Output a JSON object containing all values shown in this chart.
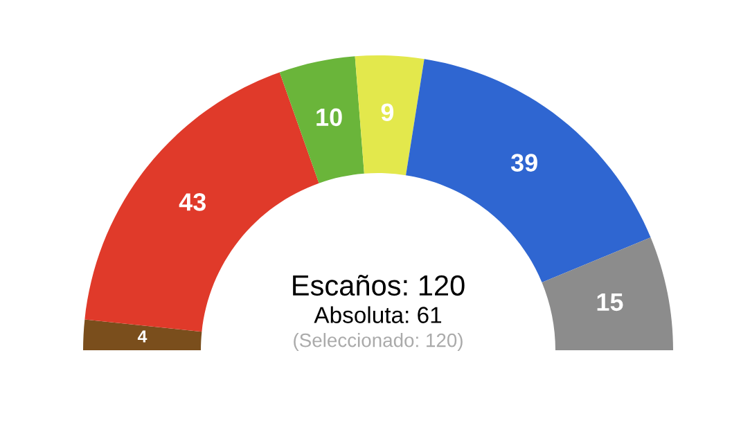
{
  "chart_data": {
    "type": "donut",
    "categories": [
      null,
      null,
      null,
      null,
      null,
      null
    ],
    "values": [
      4,
      43,
      10,
      9,
      39,
      15
    ],
    "colors": [
      "#7a4e1c",
      "#e03a2a",
      "#6ab53a",
      "#e3e84c",
      "#2f66d1",
      "#8c8c8c"
    ],
    "data_labels": true,
    "annotations": [
      "Escaños: 120",
      "Absoluta: 61",
      "(Seleccionado: 120)"
    ]
  }
}
